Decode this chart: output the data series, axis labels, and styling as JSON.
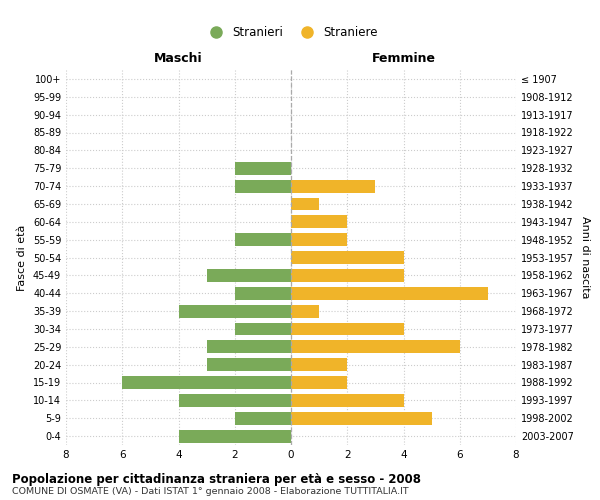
{
  "age_groups": [
    "100+",
    "95-99",
    "90-94",
    "85-89",
    "80-84",
    "75-79",
    "70-74",
    "65-69",
    "60-64",
    "55-59",
    "50-54",
    "45-49",
    "40-44",
    "35-39",
    "30-34",
    "25-29",
    "20-24",
    "15-19",
    "10-14",
    "5-9",
    "0-4"
  ],
  "birth_years": [
    "≤ 1907",
    "1908-1912",
    "1913-1917",
    "1918-1922",
    "1923-1927",
    "1928-1932",
    "1933-1937",
    "1938-1942",
    "1943-1947",
    "1948-1952",
    "1953-1957",
    "1958-1962",
    "1963-1967",
    "1968-1972",
    "1973-1977",
    "1978-1982",
    "1983-1987",
    "1988-1992",
    "1993-1997",
    "1998-2002",
    "2003-2007"
  ],
  "males": [
    0,
    0,
    0,
    0,
    0,
    2,
    2,
    0,
    0,
    2,
    0,
    3,
    2,
    4,
    2,
    3,
    3,
    6,
    4,
    2,
    4
  ],
  "females": [
    0,
    0,
    0,
    0,
    0,
    0,
    3,
    1,
    2,
    2,
    4,
    4,
    7,
    1,
    4,
    6,
    2,
    2,
    4,
    5,
    0
  ],
  "male_color": "#7aaa59",
  "female_color": "#f0b429",
  "title": "Popolazione per cittadinanza straniera per età e sesso - 2008",
  "subtitle": "COMUNE DI OSMATE (VA) - Dati ISTAT 1° gennaio 2008 - Elaborazione TUTTITALIA.IT",
  "xlabel_left": "Maschi",
  "xlabel_right": "Femmine",
  "ylabel_left": "Fasce di età",
  "ylabel_right": "Anni di nascita",
  "legend_male": "Stranieri",
  "legend_female": "Straniere",
  "xlim": 8,
  "background_color": "#ffffff",
  "grid_color": "#cccccc"
}
